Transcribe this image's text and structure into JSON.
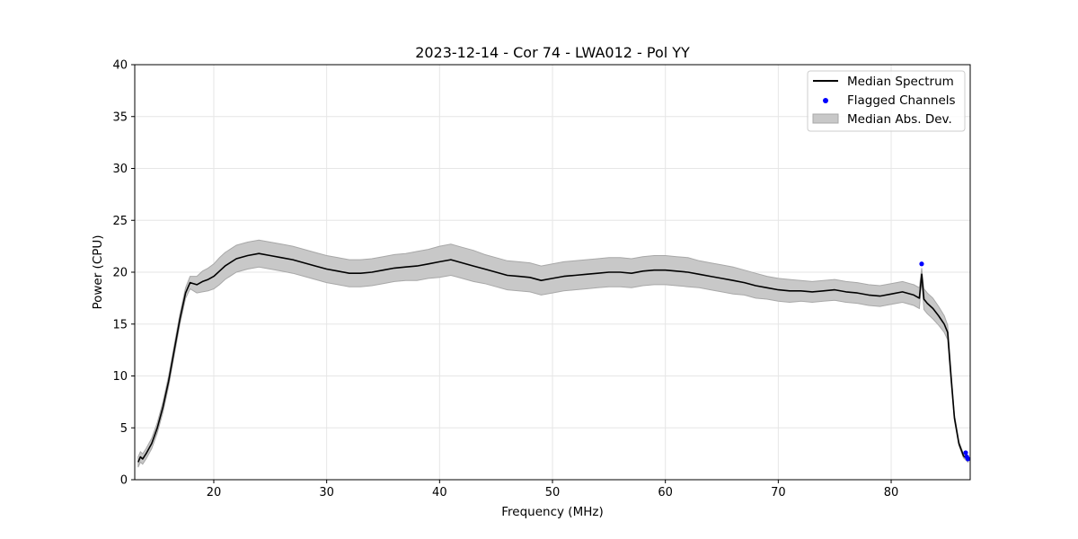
{
  "chart_data": {
    "type": "line",
    "title": "2023-12-14 - Cor 74 - LWA012 - Pol YY",
    "xlabel": "Frequency (MHz)",
    "ylabel": "Power (CPU)",
    "xlim": [
      13,
      87
    ],
    "ylim": [
      0,
      40
    ],
    "xticks": [
      20,
      30,
      40,
      50,
      60,
      70,
      80
    ],
    "yticks": [
      0,
      5,
      10,
      15,
      20,
      25,
      30,
      35,
      40
    ],
    "grid": true,
    "legend_position": "top-right",
    "series": [
      {
        "name": "Median Spectrum",
        "kind": "line",
        "color": "#000000",
        "x": [
          13.3,
          13.5,
          13.7,
          14.0,
          14.5,
          15.0,
          15.5,
          16.0,
          16.5,
          17.0,
          17.5,
          17.9,
          18.5,
          19.0,
          19.5,
          20.0,
          20.5,
          21.0,
          22.0,
          23.0,
          24.0,
          25.0,
          26.0,
          27.0,
          28.0,
          29.0,
          30.0,
          31.0,
          32.0,
          33.0,
          34.0,
          35.0,
          36.0,
          37.0,
          38.0,
          39.0,
          40.0,
          41.0,
          42.0,
          43.0,
          44.0,
          45.0,
          46.0,
          47.0,
          48.0,
          49.0,
          50.0,
          51.0,
          52.0,
          53.0,
          54.0,
          55.0,
          56.0,
          57.0,
          58.0,
          59.0,
          60.0,
          61.0,
          62.0,
          63.0,
          64.0,
          65.0,
          66.0,
          67.0,
          68.0,
          69.0,
          70.0,
          71.0,
          72.0,
          73.0,
          74.0,
          75.0,
          76.0,
          77.0,
          78.0,
          79.0,
          80.0,
          81.0,
          82.0,
          82.5,
          82.7,
          82.9,
          83.2,
          83.7,
          84.2,
          84.7,
          85.0,
          85.3,
          85.6,
          86.0,
          86.4,
          86.8
        ],
        "y": [
          1.7,
          2.2,
          2.0,
          2.5,
          3.5,
          5.0,
          7.0,
          9.5,
          12.5,
          15.5,
          18.0,
          19.0,
          18.8,
          19.1,
          19.3,
          19.6,
          20.1,
          20.6,
          21.3,
          21.6,
          21.8,
          21.6,
          21.4,
          21.2,
          20.9,
          20.6,
          20.3,
          20.1,
          19.9,
          19.9,
          20.0,
          20.2,
          20.4,
          20.5,
          20.6,
          20.8,
          21.0,
          21.2,
          20.9,
          20.6,
          20.3,
          20.0,
          19.7,
          19.6,
          19.5,
          19.2,
          19.4,
          19.6,
          19.7,
          19.8,
          19.9,
          20.0,
          20.0,
          19.9,
          20.1,
          20.2,
          20.2,
          20.1,
          20.0,
          19.8,
          19.6,
          19.4,
          19.2,
          19.0,
          18.7,
          18.5,
          18.3,
          18.2,
          18.2,
          18.1,
          18.2,
          18.3,
          18.1,
          18.0,
          17.8,
          17.7,
          17.9,
          18.1,
          17.8,
          17.5,
          19.8,
          17.4,
          17.0,
          16.5,
          15.8,
          15.0,
          14.2,
          10.0,
          6.0,
          3.5,
          2.3,
          1.9
        ],
        "spread": [
          0.5,
          0.5,
          0.5,
          0.5,
          0.5,
          0.5,
          0.5,
          0.5,
          0.5,
          0.5,
          0.5,
          0.6,
          0.8,
          1.0,
          1.1,
          1.2,
          1.3,
          1.3,
          1.3,
          1.3,
          1.3,
          1.3,
          1.3,
          1.3,
          1.3,
          1.3,
          1.3,
          1.3,
          1.3,
          1.3,
          1.3,
          1.3,
          1.3,
          1.3,
          1.4,
          1.4,
          1.5,
          1.5,
          1.5,
          1.5,
          1.4,
          1.4,
          1.4,
          1.4,
          1.4,
          1.4,
          1.4,
          1.4,
          1.4,
          1.4,
          1.4,
          1.4,
          1.4,
          1.4,
          1.4,
          1.4,
          1.4,
          1.4,
          1.4,
          1.3,
          1.3,
          1.3,
          1.3,
          1.2,
          1.2,
          1.1,
          1.1,
          1.1,
          1.0,
          1.0,
          1.0,
          1.0,
          1.0,
          1.0,
          1.0,
          1.0,
          1.0,
          1.0,
          1.0,
          1.0,
          0.6,
          1.0,
          1.0,
          1.0,
          0.9,
          0.8,
          0.7,
          0.5,
          0.3,
          0.2,
          0.2,
          0.2
        ]
      },
      {
        "name": "Flagged Channels",
        "kind": "scatter",
        "color": "#0000ff",
        "x": [
          82.7,
          86.6,
          86.7,
          86.8
        ],
        "y": [
          20.8,
          2.6,
          2.2,
          2.0
        ]
      },
      {
        "name": "Median Abs. Dev.",
        "kind": "band",
        "color": "#c8c8c8"
      }
    ]
  }
}
